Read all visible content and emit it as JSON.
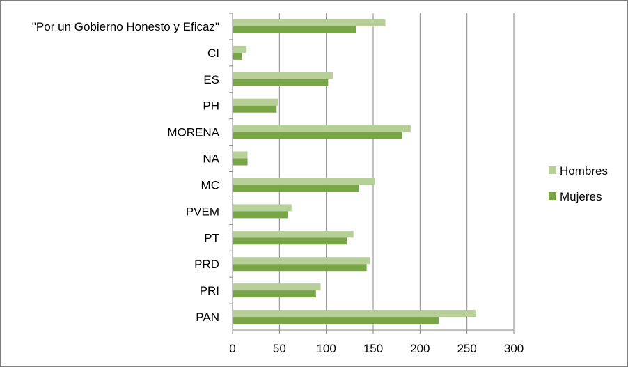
{
  "chart_data": {
    "type": "bar",
    "orientation": "horizontal",
    "categories": [
      "\"Por un Gobierno Honesto y Eficaz\"",
      "CI",
      "ES",
      "PH",
      "MORENA",
      "NA",
      "MC",
      "PVEM",
      "PT",
      "PRD",
      "PRI",
      "PAN"
    ],
    "series": [
      {
        "name": "Hombres",
        "color": "#b6d097",
        "values": [
          163,
          15,
          107,
          49,
          190,
          16,
          152,
          63,
          129,
          147,
          94,
          260
        ]
      },
      {
        "name": "Mujeres",
        "color": "#78a646",
        "values": [
          132,
          10,
          102,
          47,
          181,
          16,
          135,
          59,
          122,
          143,
          89,
          220
        ]
      }
    ],
    "xlim": [
      0,
      300
    ],
    "xticks": [
      "0",
      "50",
      "100",
      "150",
      "200",
      "250",
      "300"
    ],
    "grid": "vertical",
    "legend": "right"
  }
}
